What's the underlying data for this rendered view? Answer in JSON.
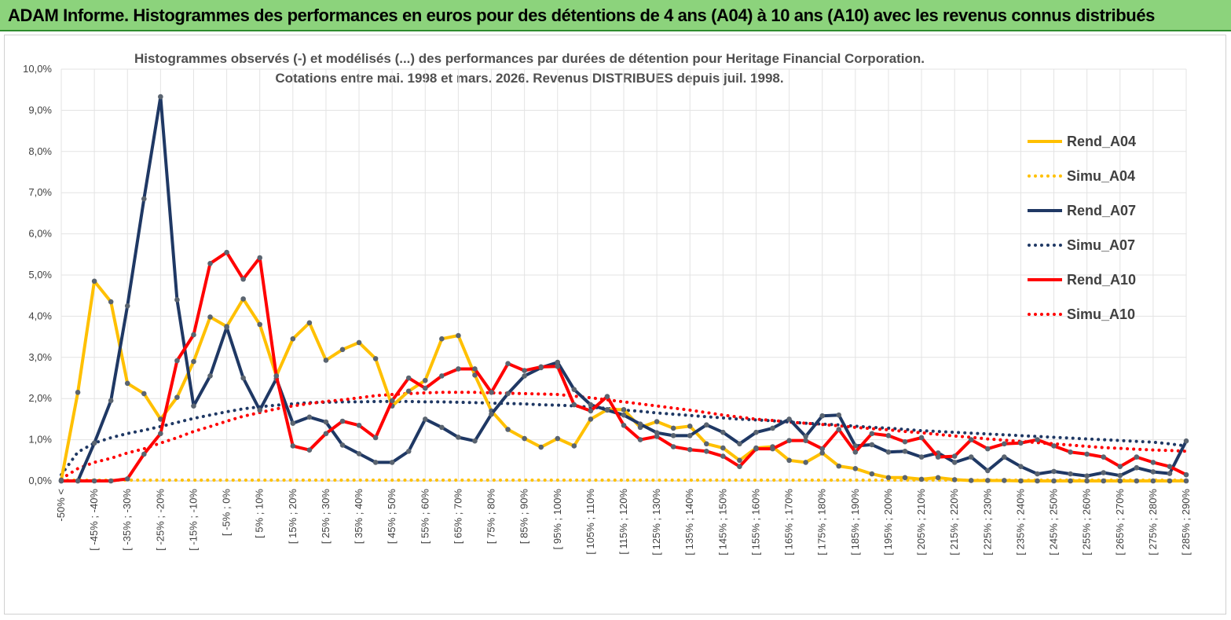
{
  "header": {
    "title": "ADAM Informe. Histogrammes des performances en euros pour des détentions de 4 ans (A04) à 10 ans (A10) avec les revenus connus distribués"
  },
  "colors": {
    "banner": "#8cd37c",
    "A04": "#ffc000",
    "A07": "#1f3864",
    "A10": "#ff0000"
  },
  "chart_data": {
    "type": "line",
    "title": [
      "Histogrammes observés (-)  et modélisés (...) des performances par durées de détention pour Heritage Financial Corporation.",
      "Cotations entre mai. 1998 et mars. 2026. Revenus DISTRIBUES depuis juil. 1998."
    ],
    "xlabel": "",
    "ylabel": "",
    "ylim": [
      0,
      10
    ],
    "yticks": [
      "0,0%",
      "1,0%",
      "2,0%",
      "3,0%",
      "4,0%",
      "5,0%",
      "6,0%",
      "7,0%",
      "8,0%",
      "9,0%",
      "10,0%"
    ],
    "legend_position": "right",
    "x_tick_labels": [
      "-50% <",
      "[ -45% ; -40%",
      "[ -35% ; -30%",
      "[ -25% ; -20%",
      "[ -15% ; -10%",
      "[ -5% ; 0%",
      "[ 5% ; 10%",
      "[ 15% ; 20%",
      "[ 25% ; 30%",
      "[ 35% ; 40%",
      "[ 45% ; 50%",
      "[ 55% ; 60%",
      "[ 65% ; 70%",
      "[ 75% ; 80%",
      "[ 85% ; 90%",
      "[ 95% ; 100%",
      "[ 105% ; 110%",
      "[ 115% ; 120%",
      "[ 125% ; 130%",
      "[ 135% ; 140%",
      "[ 145% ; 150%",
      "[ 155% ; 160%",
      "[ 165% ; 170%",
      "[ 175% ; 180%",
      "[ 185% ; 190%",
      "[ 195% ; 200%",
      "[ 205% ; 210%",
      "[ 215% ; 220%",
      "[ 225% ; 230%",
      "[ 235% ; 240%",
      "[ 245% ; 250%",
      "[ 255% ; 260%",
      "[ 265% ; 270%",
      "[ 275% ; 280%",
      "[ 285% ; 290%"
    ],
    "x_count": 69,
    "series": [
      {
        "name": "Rend_A04",
        "key": "A04",
        "style": "solid",
        "values": [
          0.02,
          2.15,
          4.85,
          4.35,
          2.37,
          2.12,
          1.5,
          2.03,
          2.9,
          3.98,
          3.75,
          4.42,
          3.8,
          2.55,
          3.45,
          3.84,
          2.93,
          3.19,
          3.36,
          2.97,
          1.82,
          2.18,
          2.44,
          3.45,
          3.53,
          2.57,
          1.7,
          1.25,
          1.03,
          0.82,
          1.03,
          0.85,
          1.5,
          1.73,
          1.73,
          1.3,
          1.44,
          1.28,
          1.33,
          0.9,
          0.8,
          0.5,
          0.8,
          0.83,
          0.5,
          0.45,
          0.68,
          0.36,
          0.3,
          0.17,
          0.08,
          0.08,
          0.04,
          0.08,
          0.03,
          0.01,
          0.01,
          0.01,
          0.0,
          0.0,
          0.0,
          0.0,
          0.0,
          0.0,
          0.0,
          0.0,
          0.0,
          0.0,
          0.0
        ]
      },
      {
        "name": "Simu_A04",
        "key": "A04",
        "style": "dotted",
        "values": [
          0.02,
          0.02,
          0.02,
          0.02,
          0.02,
          0.02,
          0.02,
          0.02,
          0.02,
          0.02,
          0.02,
          0.02,
          0.02,
          0.02,
          0.02,
          0.02,
          0.02,
          0.02,
          0.02,
          0.02,
          0.02,
          0.02,
          0.02,
          0.02,
          0.02,
          0.02,
          0.02,
          0.02,
          0.02,
          0.02,
          0.02,
          0.02,
          0.02,
          0.02,
          0.02,
          0.02,
          0.02,
          0.02,
          0.02,
          0.02,
          0.02,
          0.02,
          0.02,
          0.02,
          0.02,
          0.02,
          0.02,
          0.02,
          0.02,
          0.02,
          0.02,
          0.02,
          0.02,
          0.02,
          0.02,
          0.02,
          0.02,
          0.02,
          0.02,
          0.02,
          0.02,
          0.02,
          0.02,
          0.02,
          0.02,
          0.02,
          0.02,
          0.02,
          0.02
        ]
      },
      {
        "name": "Rend_A07",
        "key": "A07",
        "style": "solid",
        "values": [
          0.0,
          0.0,
          0.92,
          1.95,
          4.25,
          6.85,
          9.33,
          4.4,
          1.82,
          2.55,
          3.73,
          2.5,
          1.72,
          2.48,
          1.4,
          1.55,
          1.43,
          0.87,
          0.66,
          0.45,
          0.45,
          0.72,
          1.5,
          1.3,
          1.06,
          0.97,
          1.62,
          2.12,
          2.55,
          2.75,
          2.88,
          2.22,
          1.85,
          1.72,
          1.6,
          1.38,
          1.17,
          1.1,
          1.1,
          1.36,
          1.18,
          0.9,
          1.18,
          1.28,
          1.5,
          1.08,
          1.58,
          1.6,
          0.85,
          0.88,
          0.7,
          0.72,
          0.58,
          0.68,
          0.45,
          0.58,
          0.25,
          0.58,
          0.35,
          0.17,
          0.23,
          0.17,
          0.12,
          0.2,
          0.13,
          0.32,
          0.22,
          0.18,
          0.97
        ]
      },
      {
        "name": "Simu_A07",
        "key": "A07",
        "style": "dotted",
        "values": [
          0.15,
          0.7,
          0.92,
          1.05,
          1.15,
          1.23,
          1.32,
          1.42,
          1.52,
          1.6,
          1.68,
          1.75,
          1.8,
          1.84,
          1.87,
          1.9,
          1.91,
          1.92,
          1.92,
          1.93,
          1.93,
          1.93,
          1.92,
          1.92,
          1.91,
          1.9,
          1.89,
          1.88,
          1.87,
          1.85,
          1.84,
          1.82,
          1.79,
          1.76,
          1.72,
          1.69,
          1.65,
          1.62,
          1.59,
          1.56,
          1.53,
          1.5,
          1.48,
          1.46,
          1.43,
          1.4,
          1.38,
          1.36,
          1.33,
          1.3,
          1.28,
          1.25,
          1.22,
          1.2,
          1.18,
          1.16,
          1.14,
          1.12,
          1.1,
          1.08,
          1.06,
          1.04,
          1.02,
          1.0,
          0.98,
          0.96,
          0.94,
          0.9,
          0.85
        ]
      },
      {
        "name": "Rend_A10",
        "key": "A10",
        "style": "solid",
        "values": [
          0.0,
          0.0,
          0.0,
          0.0,
          0.05,
          0.65,
          1.15,
          2.92,
          3.55,
          5.28,
          5.55,
          4.9,
          5.42,
          2.55,
          0.85,
          0.75,
          1.15,
          1.45,
          1.35,
          1.05,
          1.95,
          2.5,
          2.25,
          2.55,
          2.72,
          2.72,
          2.15,
          2.85,
          2.68,
          2.77,
          2.78,
          1.85,
          1.7,
          2.05,
          1.35,
          1.0,
          1.08,
          0.83,
          0.76,
          0.72,
          0.6,
          0.35,
          0.78,
          0.78,
          0.98,
          0.98,
          0.78,
          1.25,
          0.7,
          1.15,
          1.1,
          0.95,
          1.05,
          0.58,
          0.6,
          1.0,
          0.78,
          0.9,
          0.92,
          1.0,
          0.85,
          0.7,
          0.65,
          0.58,
          0.35,
          0.58,
          0.45,
          0.35,
          0.15
        ]
      },
      {
        "name": "Simu_A10",
        "key": "A10",
        "style": "dotted",
        "values": [
          0.05,
          0.3,
          0.45,
          0.55,
          0.68,
          0.78,
          0.92,
          1.05,
          1.2,
          1.32,
          1.45,
          1.57,
          1.66,
          1.75,
          1.82,
          1.88,
          1.93,
          1.97,
          2.02,
          2.07,
          2.1,
          2.12,
          2.14,
          2.15,
          2.15,
          2.15,
          2.14,
          2.13,
          2.12,
          2.11,
          2.1,
          2.06,
          2.02,
          1.97,
          1.92,
          1.87,
          1.82,
          1.77,
          1.72,
          1.66,
          1.6,
          1.55,
          1.5,
          1.47,
          1.43,
          1.4,
          1.37,
          1.34,
          1.3,
          1.27,
          1.24,
          1.2,
          1.17,
          1.13,
          1.09,
          1.06,
          1.02,
          0.99,
          0.96,
          0.93,
          0.9,
          0.87,
          0.84,
          0.81,
          0.79,
          0.77,
          0.75,
          0.74,
          0.72
        ]
      }
    ]
  }
}
